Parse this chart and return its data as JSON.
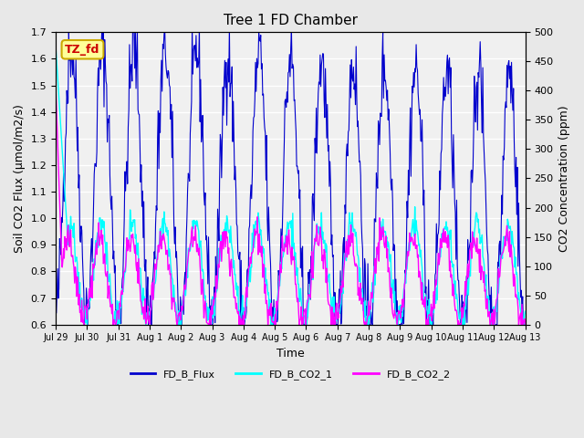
{
  "title": "Tree 1 FD Chamber",
  "xlabel": "Time",
  "ylabel_left": "Soil CO2 Flux (μmol/m2/s)",
  "ylabel_right": "CO2 Concentration (ppm)",
  "ylim_left": [
    0.6,
    1.7
  ],
  "ylim_right": [
    0,
    500
  ],
  "yticks_left": [
    0.6,
    0.7,
    0.8,
    0.9,
    1.0,
    1.1,
    1.2,
    1.3,
    1.4,
    1.5,
    1.6,
    1.7
  ],
  "yticks_right": [
    0,
    50,
    100,
    150,
    200,
    250,
    300,
    350,
    400,
    450,
    500
  ],
  "flux_color": "#0000CC",
  "co2_1_color": "#00FFFF",
  "co2_2_color": "#FF00FF",
  "annotation_text": "TZ_fd",
  "annotation_bg": "#FFFF99",
  "annotation_border": "#CCAA00",
  "annotation_text_color": "#CC0000",
  "legend_labels": [
    "FD_B_Flux",
    "FD_B_CO2_1",
    "FD_B_CO2_2"
  ],
  "bg_color": "#E8E8E8",
  "plot_bg": "#F0F0F0",
  "grid_color": "#FFFFFF",
  "xtick_labels": [
    "Jul 29",
    "Jul 30",
    "Jul 31",
    "Aug 1",
    "Aug 2",
    "Aug 3",
    "Aug 4",
    "Aug 5",
    "Aug 6",
    "Aug 7",
    "Aug 8",
    "Aug 9",
    "Aug 10",
    "Aug 11",
    "Aug 12",
    "Aug 13"
  ],
  "num_days": 15,
  "seed": 42
}
